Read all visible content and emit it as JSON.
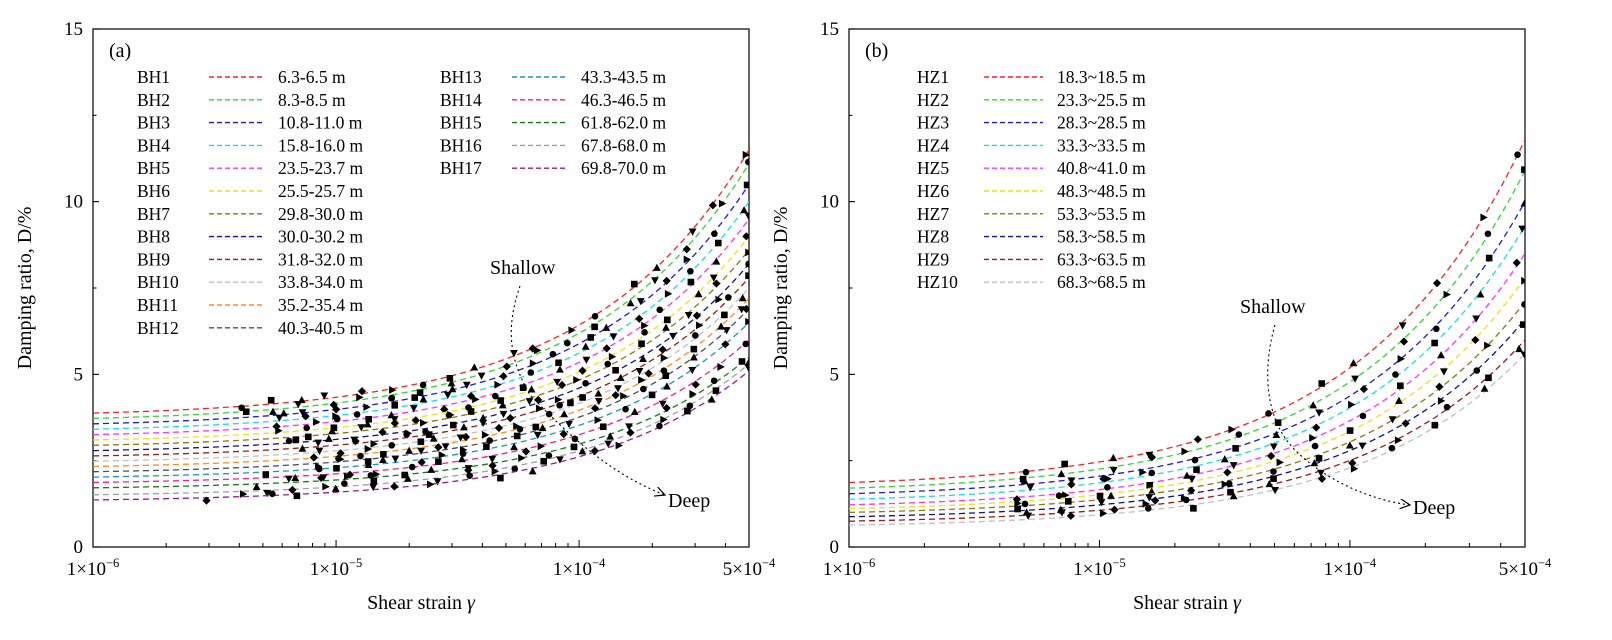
{
  "chart_data": [
    {
      "type": "line",
      "panel_label": "(a)",
      "xlabel": "Shear strain",
      "xlabel_symbol": "γ",
      "ylabel": "Damping ratio, D/%",
      "x_scale": "log",
      "xlim": [
        1e-06,
        0.0005
      ],
      "ylim": [
        0,
        15
      ],
      "x_ticks": [
        {
          "value": 1e-06,
          "mant": "1×10",
          "exp": "−6"
        },
        {
          "value": 1e-05,
          "mant": "1×10",
          "exp": "−5"
        },
        {
          "value": 0.0001,
          "mant": "1×10",
          "exp": "−4"
        },
        {
          "value": 0.0005,
          "mant": "5×10",
          "exp": "−4"
        }
      ],
      "y_ticks": [
        "0",
        "5",
        "10",
        "15"
      ],
      "y_tick_values": [
        0,
        5,
        10,
        15
      ],
      "annotations": {
        "shallow": "Shallow",
        "deep": "Deep"
      },
      "series": [
        {
          "name": "BH1",
          "range": "6.3-6.5 m",
          "color": "#ff2020",
          "dmin": 3.75,
          "dmax": 11.5,
          "gamma_start": 4e-06
        },
        {
          "name": "BH2",
          "range": "8.3-8.5 m",
          "color": "#33d633",
          "dmin": 3.6,
          "dmax": 11.1,
          "gamma_start": 4e-06
        },
        {
          "name": "BH3",
          "range": "10.8-11.0 m",
          "color": "#1a1ae6",
          "dmin": 3.45,
          "dmax": 10.5,
          "gamma_start": 6e-06
        },
        {
          "name": "BH4",
          "range": "15.8-16.0 m",
          "color": "#19e0e0",
          "dmin": 3.3,
          "dmax": 10.0,
          "gamma_start": 6e-06
        },
        {
          "name": "BH5",
          "range": "23.5-23.7 m",
          "color": "#ff33ff",
          "dmin": 3.15,
          "dmax": 9.5,
          "gamma_start": 6e-06
        },
        {
          "name": "BH6",
          "range": "25.5-25.7 m",
          "color": "#e6e619",
          "dmin": 3.0,
          "dmax": 9.0,
          "gamma_start": 6e-06
        },
        {
          "name": "BH7",
          "range": "29.8-30.0 m",
          "color": "#8a7a10",
          "dmin": 2.85,
          "dmax": 8.6,
          "gamma_start": 6e-06
        },
        {
          "name": "BH8",
          "range": "30.0-30.2 m",
          "color": "#101090",
          "dmin": 2.7,
          "dmax": 8.2,
          "gamma_start": 7e-06
        },
        {
          "name": "BH9",
          "range": "31.8-32.0 m",
          "color": "#9b1a1a",
          "dmin": 2.55,
          "dmax": 7.8,
          "gamma_start": 7e-06
        },
        {
          "name": "BH10",
          "range": "33.8-34.0 m",
          "color": "#c0c0c0",
          "dmin": 2.4,
          "dmax": 7.5,
          "gamma_start": 8e-06
        },
        {
          "name": "BH11",
          "range": "35.2-35.4 m",
          "color": "#ff8c1a",
          "dmin": 2.25,
          "dmax": 7.2,
          "gamma_start": 8e-06
        },
        {
          "name": "BH12",
          "range": "40.3-40.5 m",
          "color": "#505050",
          "dmin": 2.1,
          "dmax": 6.9,
          "gamma_start": 8e-06
        },
        {
          "name": "BH13",
          "range": "43.3-43.5 m",
          "color": "#1a9ab0",
          "dmin": 1.95,
          "dmax": 6.5,
          "gamma_start": 8e-06
        },
        {
          "name": "BH14",
          "range": "46.3-46.5 m",
          "color": "#ff1a8c",
          "dmin": 1.8,
          "dmax": 6.0,
          "gamma_start": 5e-06
        },
        {
          "name": "BH15",
          "range": "61.8-62.0 m",
          "color": "#1a7a1a",
          "dmin": 1.65,
          "dmax": 5.5,
          "gamma_start": 5e-06
        },
        {
          "name": "BH16",
          "range": "67.8-68.0 m",
          "color": "#a0a0a0",
          "dmin": 1.45,
          "dmax": 5.3,
          "gamma_start": 5e-06
        },
        {
          "name": "BH17",
          "range": "69.8-70.0 m",
          "color": "#991a99",
          "dmin": 1.3,
          "dmax": 5.1,
          "gamma_start": 3e-06
        }
      ]
    },
    {
      "type": "line",
      "panel_label": "(b)",
      "xlabel": "Shear strain",
      "xlabel_symbol": "γ",
      "ylabel": "Damping ratio, D/%",
      "x_scale": "log",
      "xlim": [
        1e-06,
        0.0005
      ],
      "ylim": [
        0,
        15
      ],
      "x_ticks": [
        {
          "value": 1e-06,
          "mant": "1×10",
          "exp": "−6"
        },
        {
          "value": 1e-05,
          "mant": "1×10",
          "exp": "−5"
        },
        {
          "value": 0.0001,
          "mant": "1×10",
          "exp": "−4"
        },
        {
          "value": 0.0005,
          "mant": "5×10",
          "exp": "−4"
        }
      ],
      "y_ticks": [
        "0",
        "5",
        "10",
        "15"
      ],
      "y_tick_values": [
        0,
        5,
        10,
        15
      ],
      "annotations": {
        "shallow": "Shallow",
        "deep": "Deep"
      },
      "series": [
        {
          "name": "HZ1",
          "range": "18.3~18.5 m",
          "color": "#ff2020",
          "dmin": 1.7,
          "dmax": 11.8,
          "gamma_start": 5e-06
        },
        {
          "name": "HZ2",
          "range": "23.3~25.5 m",
          "color": "#33d633",
          "dmin": 1.55,
          "dmax": 10.9,
          "gamma_start": 5e-06
        },
        {
          "name": "HZ3",
          "range": "28.3~28.5 m",
          "color": "#1a1ae6",
          "dmin": 1.4,
          "dmax": 10.0,
          "gamma_start": 5e-06
        },
        {
          "name": "HZ4",
          "range": "33.3~33.5 m",
          "color": "#19e0e0",
          "dmin": 1.25,
          "dmax": 9.3,
          "gamma_start": 5e-06
        },
        {
          "name": "HZ5",
          "range": "40.8~41.0 m",
          "color": "#ff33ff",
          "dmin": 1.1,
          "dmax": 8.5,
          "gamma_start": 5e-06
        },
        {
          "name": "HZ6",
          "range": "48.3~48.5 m",
          "color": "#e6e619",
          "dmin": 1.0,
          "dmax": 7.8,
          "gamma_start": 5e-06
        },
        {
          "name": "HZ7",
          "range": "53.3~53.5 m",
          "color": "#8a7a10",
          "dmin": 0.9,
          "dmax": 7.1,
          "gamma_start": 5e-06
        },
        {
          "name": "HZ8",
          "range": "58.3~58.5 m",
          "color": "#101090",
          "dmin": 0.78,
          "dmax": 6.6,
          "gamma_start": 5e-06
        },
        {
          "name": "HZ9",
          "range": "63.3~63.5 m",
          "color": "#9b1a1a",
          "dmin": 0.66,
          "dmax": 6.0,
          "gamma_start": 5e-06
        },
        {
          "name": "HZ10",
          "range": "68.3~68.5 m",
          "color": "#c0c0c0",
          "dmin": 0.55,
          "dmax": 5.6,
          "gamma_start": 5e-06
        }
      ]
    }
  ]
}
